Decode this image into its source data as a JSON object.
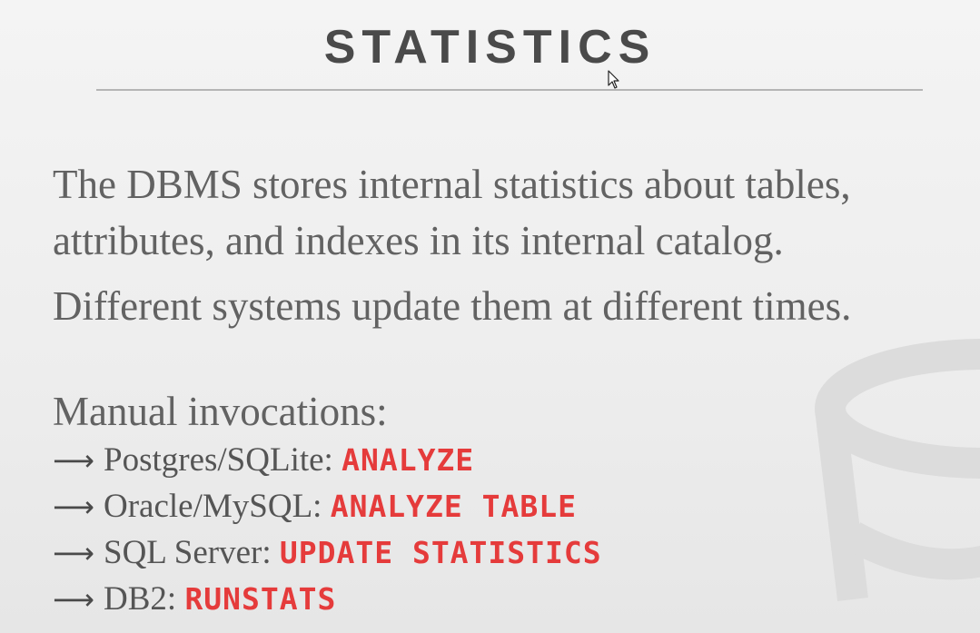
{
  "slide": {
    "title": "STATISTICS",
    "paragraphs": [
      "The DBMS stores internal statistics about tables,",
      "attributes, and indexes in its internal catalog.",
      "Different systems update them at different times."
    ],
    "list_heading": "Manual invocations:",
    "items": [
      {
        "system": "Postgres/SQLite:",
        "command": "ANALYZE"
      },
      {
        "system": "Oracle/MySQL:",
        "command": "ANALYZE TABLE"
      },
      {
        "system": "SQL Server:",
        "command": "UPDATE STATISTICS"
      },
      {
        "system": "DB2:",
        "command": "RUNSTATS"
      }
    ]
  },
  "icons": {
    "bullet": "arrow-right-icon",
    "watermark": "database-watermark-icon",
    "cursor": "mouse-pointer-icon"
  },
  "colors": {
    "title": "#4a4a4a",
    "body_text": "#626262",
    "command": "#e53b3b",
    "rule": "#b5b5b5"
  }
}
